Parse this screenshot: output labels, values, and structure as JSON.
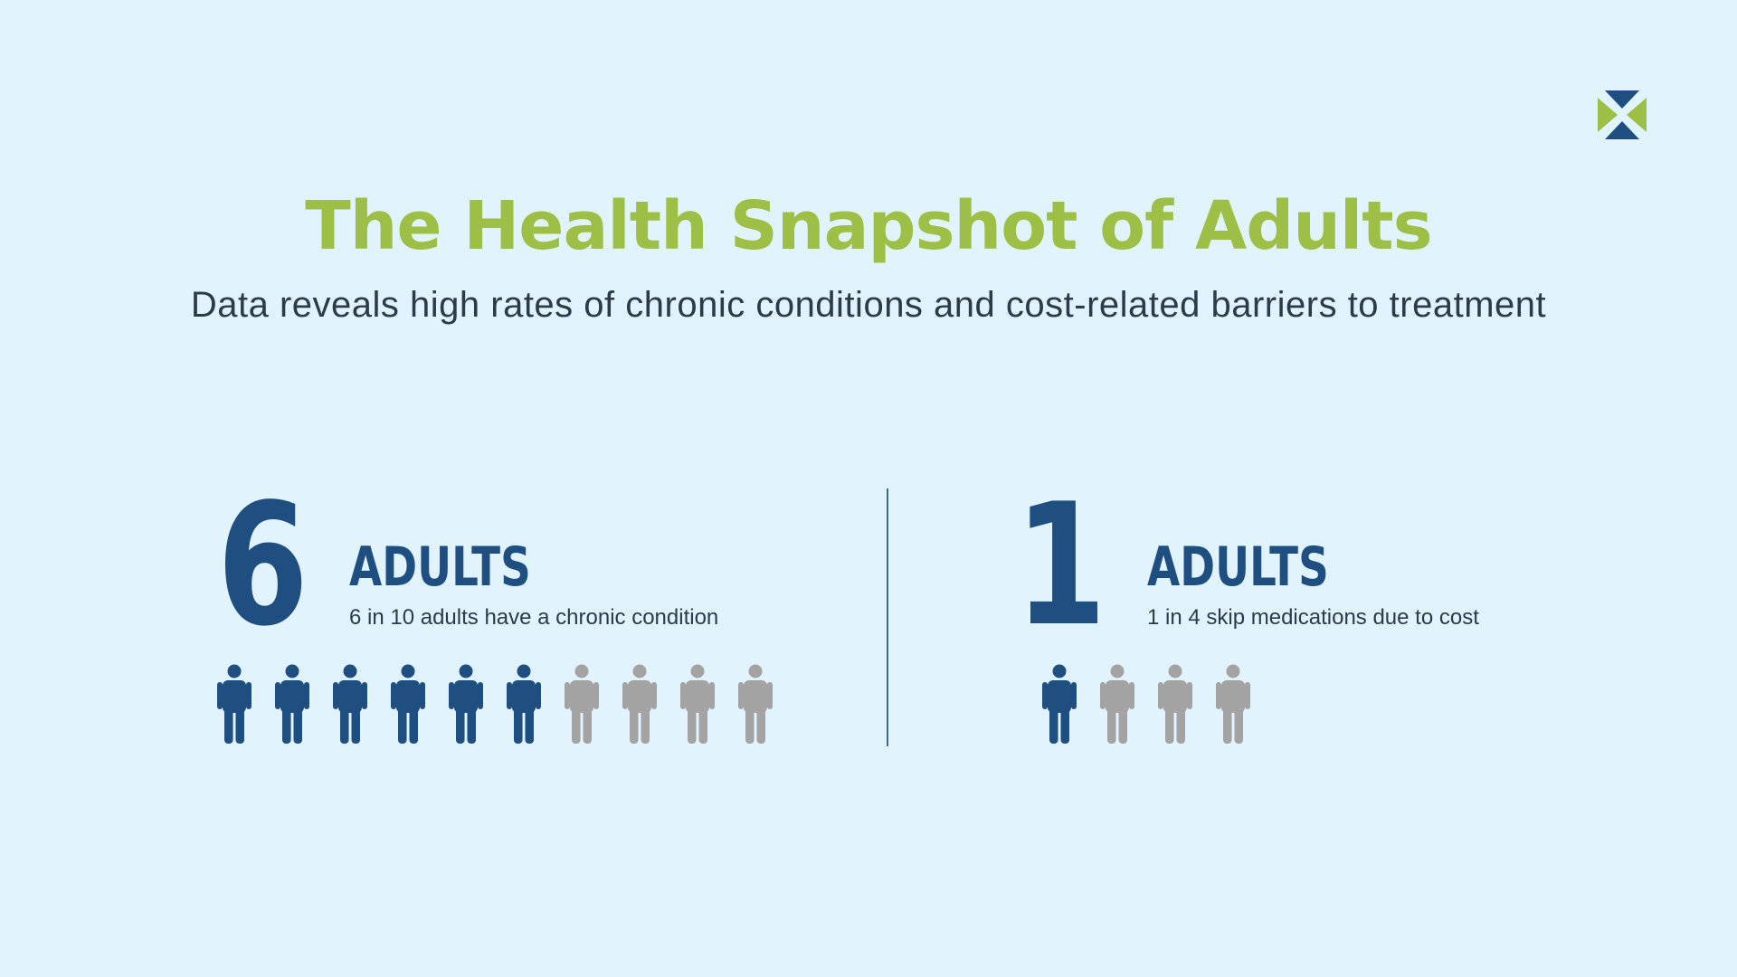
{
  "header": {
    "title": "The Health Snapshot of Adults",
    "subtitle": "Data reveals high rates of chronic conditions and cost-related barriers to treatment"
  },
  "brand": {
    "logo_icon": "x-logo-icon",
    "green": "#9dbf45",
    "blue": "#1f4e80"
  },
  "stats": [
    {
      "number": "6",
      "label": "ADULTS",
      "description": "6 in 10 adults have a chronic condition",
      "filled": 6,
      "total": 10
    },
    {
      "number": "1",
      "label": "ADULTS",
      "description": "1 in 4 skip medications due to cost",
      "filled": 1,
      "total": 4
    }
  ],
  "colors": {
    "background": "#e1f3fd",
    "filled_person": "#1f4e80",
    "empty_person": "#a3a3a3"
  }
}
